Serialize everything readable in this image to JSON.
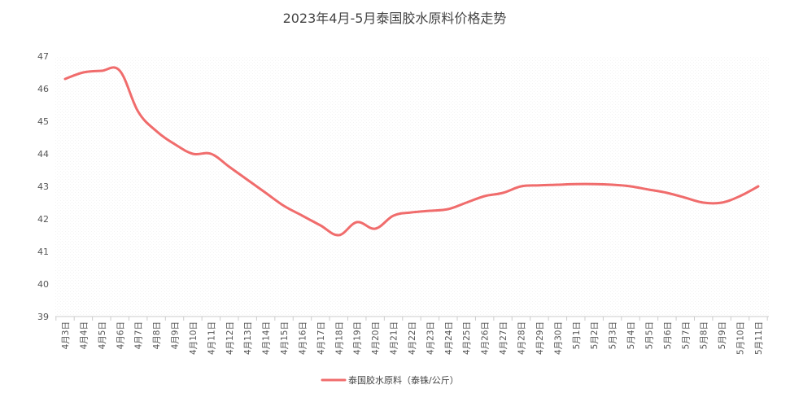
{
  "chart_data": {
    "type": "line",
    "title": "2023年4月-5月泰国胶水原料价格走势",
    "xlabel": "",
    "ylabel": "",
    "ylim": [
      39,
      47
    ],
    "yticks": [
      39,
      40,
      41,
      42,
      43,
      44,
      45,
      46,
      47
    ],
    "grid": false,
    "background_pattern": "dotted",
    "legend_position": "bottom",
    "categories": [
      "4月3日",
      "4月4日",
      "4月5日",
      "4月6日",
      "4月7日",
      "4月8日",
      "4月9日",
      "4月10日",
      "4月11日",
      "4月12日",
      "4月13日",
      "4月14日",
      "4月15日",
      "4月16日",
      "4月17日",
      "4月18日",
      "4月19日",
      "4月20日",
      "4月21日",
      "4月22日",
      "4月23日",
      "4月24日",
      "4月25日",
      "4月26日",
      "4月27日",
      "4月28日",
      "4月29日",
      "4月30日",
      "5月1日",
      "5月2日",
      "5月3日",
      "5月4日",
      "5月5日",
      "5月6日",
      "5月7日",
      "5月8日",
      "5月9日",
      "5月10日",
      "5月11日"
    ],
    "series": [
      {
        "name": "泰国胶水原料（泰铢/公斤）",
        "color": "#f06c6c",
        "values": [
          46.3,
          46.5,
          46.55,
          46.55,
          45.3,
          44.7,
          44.3,
          44.0,
          44.0,
          43.6,
          43.2,
          42.8,
          42.4,
          42.1,
          41.8,
          41.5,
          41.9,
          41.7,
          42.1,
          42.2,
          42.25,
          42.3,
          42.5,
          42.7,
          42.8,
          43.0,
          43.03,
          43.05,
          43.07,
          43.07,
          43.05,
          43.0,
          42.9,
          42.8,
          42.65,
          42.5,
          42.5,
          42.7,
          43.0
        ]
      }
    ]
  }
}
